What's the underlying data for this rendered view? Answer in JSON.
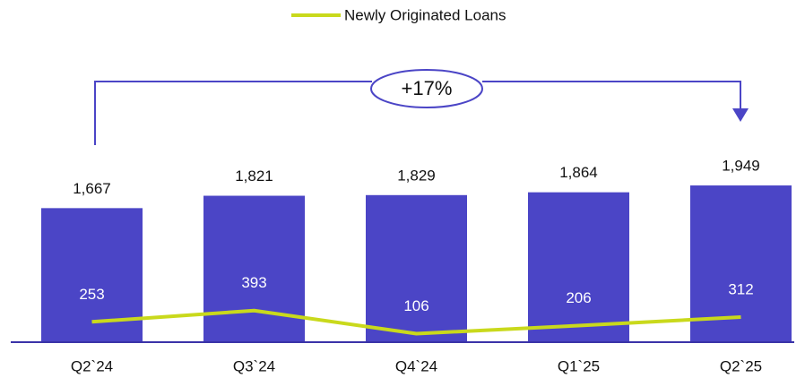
{
  "chart_data": {
    "type": "bar",
    "categories": [
      "Q2`24",
      "Q3`24",
      "Q4`24",
      "Q1`25",
      "Q2`25"
    ],
    "series": [
      {
        "type": "bar",
        "color": "#4b45c6",
        "values": [
          1667,
          1821,
          1829,
          1864,
          1949
        ],
        "value_labels": [
          "1,667",
          "1,821",
          "1,829",
          "1,864",
          "1,949"
        ]
      },
      {
        "type": "line",
        "name": "Newly Originated Loans",
        "color": "#c9d91c",
        "values": [
          253,
          393,
          106,
          206,
          312
        ]
      }
    ],
    "ylim": [
      0,
      2200
    ],
    "annotation": "+17%",
    "legend": "top"
  }
}
